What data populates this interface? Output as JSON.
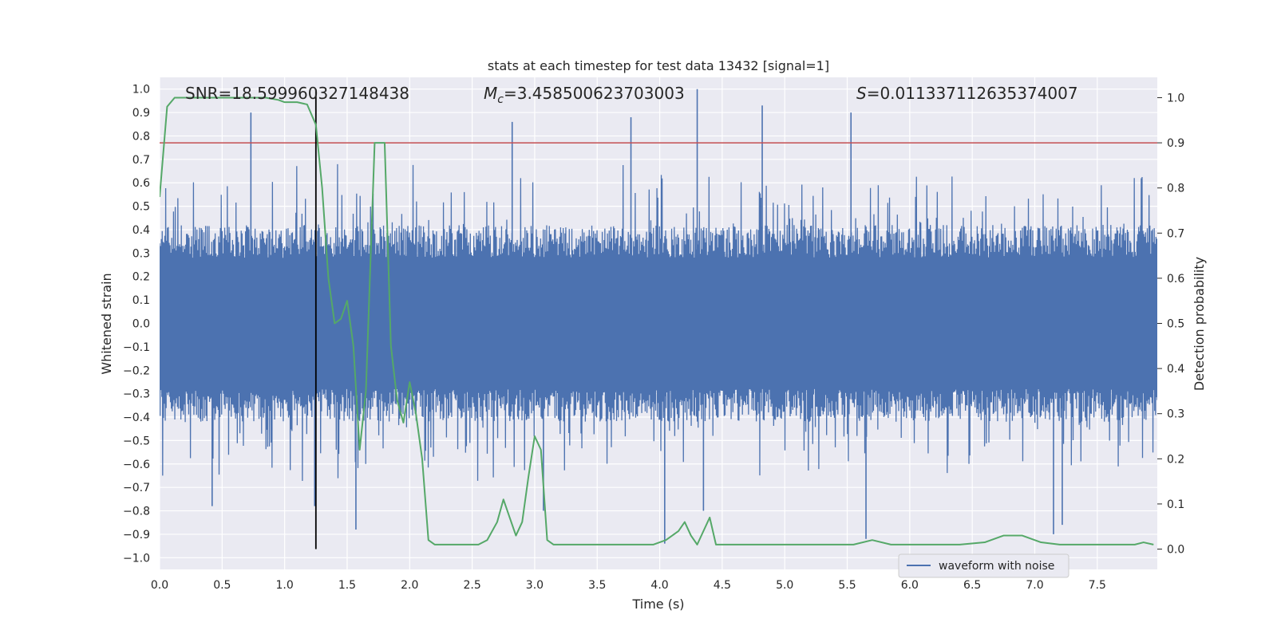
{
  "chart_data": {
    "type": "line",
    "title": "stats at each timestep for test data 13432 [signal=1]",
    "xlabel": "Time (s)",
    "ylabel_left": "Whitened strain",
    "ylabel_right": "Detection probability",
    "xlim": [
      0.0,
      7.98
    ],
    "ylim_left": [
      -1.05,
      1.05
    ],
    "ylim_right": [
      -0.045,
      1.045
    ],
    "xticks": [
      "0.0",
      "0.5",
      "1.0",
      "1.5",
      "2.0",
      "2.5",
      "3.0",
      "3.5",
      "4.0",
      "4.5",
      "5.0",
      "5.5",
      "6.0",
      "6.5",
      "7.0",
      "7.5"
    ],
    "yticks_left": [
      "1.0",
      "0.9",
      "0.8",
      "0.7",
      "0.6",
      "0.5",
      "0.4",
      "0.3",
      "0.2",
      "0.1",
      "0.0",
      "−0.1",
      "−0.2",
      "−0.3",
      "−0.4",
      "−0.5",
      "−0.6",
      "−0.7",
      "−0.8",
      "−0.9",
      "−1.0"
    ],
    "yticks_right": [
      "1.0",
      "0.9",
      "0.8",
      "0.7",
      "0.6",
      "0.5",
      "0.4",
      "0.3",
      "0.2",
      "0.1",
      "0.0"
    ],
    "grid": true,
    "annotations": {
      "snr": "SNR=18.599960327148438",
      "mc_symbol": "M",
      "mc_sub": "c",
      "mc_value": "=3.458500623703003",
      "s_symbol": "S",
      "s_value": "=0.011337112635374007"
    },
    "threshold": {
      "value": 0.9,
      "axis": "right",
      "color": "#c44e52"
    },
    "event_time": {
      "x": 1.25,
      "color": "#000000"
    },
    "legend": {
      "label": "waveform with noise",
      "position": "lower-right"
    },
    "colors": {
      "waveform": "#4c72b0",
      "probability": "#55a868",
      "background": "#eaeaf2",
      "grid": "#ffffff"
    },
    "series": [
      {
        "name": "waveform with noise",
        "axis": "left",
        "note": "dense noisy strain trace; envelope mostly within [-0.4, 0.4] with spikes to about ±0.9",
        "spikes": [
          {
            "x": 0.42,
            "y": -0.78
          },
          {
            "x": 0.73,
            "y": 0.9
          },
          {
            "x": 1.24,
            "y": -0.78
          },
          {
            "x": 1.57,
            "y": -0.88
          },
          {
            "x": 2.82,
            "y": 0.86
          },
          {
            "x": 3.07,
            "y": -0.8
          },
          {
            "x": 3.77,
            "y": 0.88
          },
          {
            "x": 4.04,
            "y": -0.94
          },
          {
            "x": 4.3,
            "y": 1.0
          },
          {
            "x": 4.35,
            "y": -0.8
          },
          {
            "x": 4.82,
            "y": 0.93
          },
          {
            "x": 5.53,
            "y": 0.9
          },
          {
            "x": 5.65,
            "y": -0.92
          },
          {
            "x": 7.15,
            "y": -0.9
          },
          {
            "x": 7.22,
            "y": -0.86
          }
        ]
      },
      {
        "name": "detection probability",
        "axis": "right",
        "x": [
          0.0,
          0.06,
          0.12,
          0.18,
          0.3,
          0.5,
          0.7,
          0.85,
          0.95,
          1.0,
          1.1,
          1.18,
          1.25,
          1.3,
          1.35,
          1.4,
          1.45,
          1.5,
          1.55,
          1.6,
          1.65,
          1.72,
          1.75,
          1.8,
          1.85,
          1.9,
          1.95,
          2.0,
          2.05,
          2.1,
          2.15,
          2.2,
          2.3,
          2.45,
          2.55,
          2.62,
          2.7,
          2.75,
          2.8,
          2.85,
          2.9,
          2.95,
          3.0,
          3.05,
          3.1,
          3.15,
          3.25,
          3.35,
          3.45,
          3.6,
          3.8,
          3.95,
          4.05,
          4.15,
          4.2,
          4.25,
          4.3,
          4.35,
          4.4,
          4.45,
          4.5,
          4.6,
          4.8,
          5.0,
          5.2,
          5.4,
          5.55,
          5.7,
          5.85,
          6.0,
          6.15,
          6.4,
          6.6,
          6.75,
          6.9,
          7.05,
          7.2,
          7.5,
          7.7,
          7.8,
          7.87,
          7.95
        ],
        "values": [
          0.78,
          0.98,
          1.0,
          1.0,
          1.0,
          1.0,
          1.0,
          1.0,
          0.995,
          0.99,
          0.99,
          0.985,
          0.94,
          0.8,
          0.6,
          0.5,
          0.51,
          0.55,
          0.45,
          0.22,
          0.35,
          0.9,
          0.9,
          0.9,
          0.45,
          0.33,
          0.28,
          0.37,
          0.3,
          0.2,
          0.02,
          0.01,
          0.01,
          0.01,
          0.01,
          0.02,
          0.06,
          0.11,
          0.07,
          0.03,
          0.06,
          0.16,
          0.25,
          0.22,
          0.02,
          0.01,
          0.01,
          0.01,
          0.01,
          0.01,
          0.01,
          0.01,
          0.02,
          0.04,
          0.06,
          0.03,
          0.01,
          0.04,
          0.07,
          0.01,
          0.01,
          0.01,
          0.01,
          0.01,
          0.01,
          0.01,
          0.01,
          0.02,
          0.01,
          0.01,
          0.01,
          0.01,
          0.015,
          0.03,
          0.03,
          0.015,
          0.01,
          0.01,
          0.01,
          0.01,
          0.015,
          0.01
        ]
      }
    ]
  }
}
